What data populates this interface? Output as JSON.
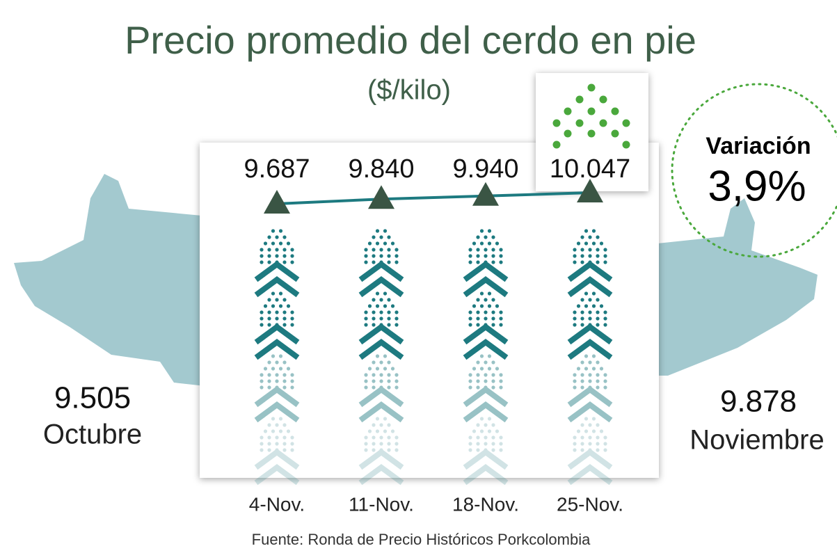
{
  "title": "Precio promedio del cerdo en pie",
  "subtitle": "($/kilo)",
  "left": {
    "value": "9.505",
    "label": "Octubre"
  },
  "right": {
    "value": "9.878",
    "label": "Noviembre"
  },
  "variation": {
    "label": "Variación",
    "value": "3,9%"
  },
  "source": "Fuente: Ronda de Precio Históricos Porkcolombia",
  "chart_data": {
    "type": "line",
    "categories": [
      "4-Nov.",
      "11-Nov.",
      "18-Nov.",
      "25-Nov."
    ],
    "values": [
      9687,
      9840,
      9940,
      10047
    ],
    "value_labels": [
      "9.687",
      "9.840",
      "9.940",
      "10.047"
    ],
    "color": "#1d7a80",
    "marker_color": "#3a5544"
  }
}
